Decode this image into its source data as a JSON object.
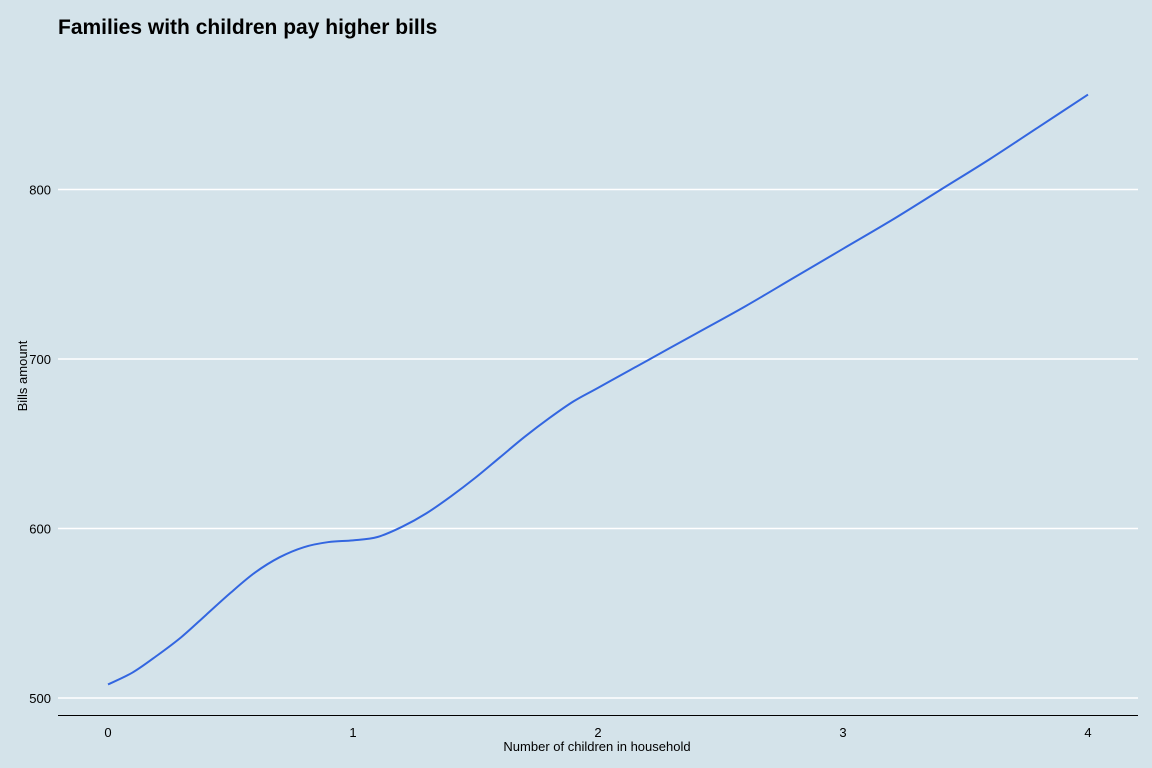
{
  "chart_data": {
    "type": "line",
    "title": "Families with children pay higher bills",
    "xlabel": "Number of children in household",
    "ylabel": "Bills amount",
    "x_ticks": [
      0,
      1,
      2,
      3,
      4
    ],
    "y_ticks": [
      500,
      600,
      700,
      800
    ],
    "xlim": [
      -0.2,
      4.2
    ],
    "ylim": [
      490,
      873
    ],
    "grid": "horizontal",
    "background_color": "#d4e3ea",
    "line_color": "#3366e0",
    "gridline_color": "#ffffff",
    "series": [
      {
        "x": [
          0,
          0.1,
          0.2,
          0.3,
          0.4,
          0.5,
          0.6,
          0.7,
          0.8,
          0.9,
          1.0,
          1.1,
          1.2,
          1.3,
          1.4,
          1.5,
          1.6,
          1.7,
          1.8,
          1.9,
          2.0,
          2.2,
          2.4,
          2.6,
          2.8,
          3.0,
          3.2,
          3.4,
          3.6,
          3.8,
          4.0
        ],
        "y": [
          508,
          515,
          525,
          536,
          549,
          562,
          574,
          583,
          589,
          592,
          593,
          595,
          601,
          609,
          619,
          630,
          642,
          654,
          665,
          675,
          683,
          699,
          715,
          731,
          748,
          765,
          782,
          800,
          818,
          837,
          856
        ]
      }
    ]
  }
}
